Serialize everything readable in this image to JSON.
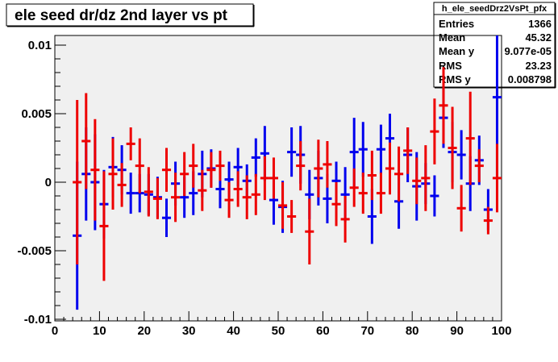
{
  "title": "ele seed dr/dz 2nd layer vs pt",
  "stats": {
    "name": "h_ele_seedDrz2VsPt_pfx",
    "rows": [
      {
        "label": "Entries",
        "value": "1366"
      },
      {
        "label": "Mean",
        "value": "45.32"
      },
      {
        "label": "Mean y",
        "value": "9.077e-05"
      },
      {
        "label": "RMS",
        "value": "23.23"
      },
      {
        "label": "RMS y",
        "value": "0.008798"
      }
    ]
  },
  "colors": {
    "series1": "#0000ee",
    "series2": "#ee0000",
    "frame_bg": "#f0f0f0",
    "axis": "#000000"
  },
  "chart_data": {
    "type": "scatter",
    "title": "ele seed dr/dz 2nd layer vs pt",
    "xlabel": "",
    "ylabel": "",
    "xlim": [
      0,
      100
    ],
    "ylim": [
      -0.0102,
      0.0108
    ],
    "x_ticks": [
      0,
      10,
      20,
      30,
      40,
      50,
      60,
      70,
      80,
      90,
      100
    ],
    "y_ticks": [
      -0.01,
      -0.005,
      0,
      0.005,
      0.01
    ],
    "y_tick_labels": [
      "-0.01",
      "-0.005",
      "0",
      "0.005",
      "0.01"
    ],
    "grid": false,
    "bin_width": 2,
    "series": [
      {
        "color": "#0000ee",
        "points": [
          {
            "x": 5,
            "y": -0.0039,
            "err": 0.0054
          },
          {
            "x": 7,
            "y": 0.0006,
            "err": 0.0034
          },
          {
            "x": 9,
            "y": 0.0,
            "err": 0.0035
          },
          {
            "x": 11,
            "y": -0.0016,
            "err": 0.0025
          },
          {
            "x": 13,
            "y": 0.0011,
            "err": 0.0022
          },
          {
            "x": 15,
            "y": 0.0009,
            "err": 0.0018
          },
          {
            "x": 17,
            "y": -0.0008,
            "err": 0.0015
          },
          {
            "x": 19,
            "y": -0.0008,
            "err": 0.0014
          },
          {
            "x": 21,
            "y": -0.0009,
            "err": 0.0015
          },
          {
            "x": 23,
            "y": -0.0011,
            "err": 0.0015
          },
          {
            "x": 25,
            "y": -0.0026,
            "err": 0.0014
          },
          {
            "x": 27,
            "y": -0.0001,
            "err": 0.0016
          },
          {
            "x": 29,
            "y": -0.0011,
            "err": 0.0015
          },
          {
            "x": 31,
            "y": -0.0008,
            "err": 0.0016
          },
          {
            "x": 33,
            "y": 0.0006,
            "err": 0.0017
          },
          {
            "x": 35,
            "y": 0.001,
            "err": 0.0014
          },
          {
            "x": 37,
            "y": -0.0005,
            "err": 0.0014
          },
          {
            "x": 39,
            "y": 0.0002,
            "err": 0.0013
          },
          {
            "x": 41,
            "y": 0.0011,
            "err": 0.0014
          },
          {
            "x": 43,
            "y": 0.0001,
            "err": 0.0012
          },
          {
            "x": 45,
            "y": 0.0018,
            "err": 0.0014
          },
          {
            "x": 47,
            "y": 0.0021,
            "err": 0.002
          },
          {
            "x": 49,
            "y": -0.0013,
            "err": 0.0018
          },
          {
            "x": 51,
            "y": -0.0018,
            "err": 0.0019
          },
          {
            "x": 53,
            "y": 0.0022,
            "err": 0.0018
          },
          {
            "x": 55,
            "y": 0.002,
            "err": 0.0021
          },
          {
            "x": 57,
            "y": -0.0009,
            "err": 0.0018
          },
          {
            "x": 59,
            "y": 0.0003,
            "err": 0.002
          },
          {
            "x": 61,
            "y": -0.0012,
            "err": 0.0018
          },
          {
            "x": 63,
            "y": 0.0001,
            "err": 0.0014
          },
          {
            "x": 65,
            "y": -0.0009,
            "err": 0.002
          },
          {
            "x": 67,
            "y": 0.0022,
            "err": 0.0025
          },
          {
            "x": 69,
            "y": 0.0024,
            "err": 0.002
          },
          {
            "x": 71,
            "y": -0.0025,
            "err": 0.002
          },
          {
            "x": 73,
            "y": 0.0024,
            "err": 0.0018
          },
          {
            "x": 75,
            "y": 0.0032,
            "err": 0.0018
          },
          {
            "x": 77,
            "y": -0.0014,
            "err": 0.002
          },
          {
            "x": 79,
            "y": 0.002,
            "err": 0.002
          },
          {
            "x": 81,
            "y": -0.0003,
            "err": 0.0025
          },
          {
            "x": 83,
            "y": -0.0001,
            "err": 0.0015
          },
          {
            "x": 85,
            "y": -0.001,
            "err": 0.0015
          },
          {
            "x": 87,
            "y": 0.0047,
            "err": 0.0022
          },
          {
            "x": 89,
            "y": 0.0022,
            "err": 0.0022
          },
          {
            "x": 91,
            "y": 0.002,
            "err": 0.0018
          },
          {
            "x": 93,
            "y": -0.0001,
            "err": 0.002
          },
          {
            "x": 95,
            "y": 0.0016,
            "err": 0.0018
          },
          {
            "x": 97,
            "y": -0.002,
            "err": 0.0015
          },
          {
            "x": 99,
            "y": 0.0062,
            "err": 0.006
          }
        ]
      },
      {
        "color": "#ee0000",
        "points": [
          {
            "x": 5,
            "y": 0.0,
            "err": 0.006
          },
          {
            "x": 7,
            "y": 0.003,
            "err": 0.0035
          },
          {
            "x": 9,
            "y": 0.0009,
            "err": 0.0037
          },
          {
            "x": 11,
            "y": -0.0032,
            "err": 0.004
          },
          {
            "x": 13,
            "y": 0.0006,
            "err": 0.0026
          },
          {
            "x": 15,
            "y": -0.0002,
            "err": 0.0016
          },
          {
            "x": 17,
            "y": 0.0028,
            "err": 0.0012
          },
          {
            "x": 19,
            "y": 0.0012,
            "err": 0.002
          },
          {
            "x": 21,
            "y": -0.0007,
            "err": 0.0018
          },
          {
            "x": 23,
            "y": -0.0012,
            "err": 0.0015
          },
          {
            "x": 25,
            "y": 0.0009,
            "err": 0.0016
          },
          {
            "x": 27,
            "y": -0.0011,
            "err": 0.0018
          },
          {
            "x": 29,
            "y": 0.0006,
            "err": 0.0016
          },
          {
            "x": 31,
            "y": 0.0012,
            "err": 0.0016
          },
          {
            "x": 33,
            "y": -0.0006,
            "err": 0.0015
          },
          {
            "x": 35,
            "y": 0.0009,
            "err": 0.0013
          },
          {
            "x": 37,
            "y": 0.0012,
            "err": 0.0011
          },
          {
            "x": 39,
            "y": -0.0013,
            "err": 0.0013
          },
          {
            "x": 41,
            "y": -0.0005,
            "err": 0.0013
          },
          {
            "x": 43,
            "y": -0.0011,
            "err": 0.0016
          },
          {
            "x": 45,
            "y": -0.0009,
            "err": 0.0015
          },
          {
            "x": 47,
            "y": 0.0003,
            "err": 0.0016
          },
          {
            "x": 49,
            "y": 0.0003,
            "err": 0.0015
          },
          {
            "x": 51,
            "y": -0.0017,
            "err": 0.0017
          },
          {
            "x": 53,
            "y": -0.0025,
            "err": 0.0012
          },
          {
            "x": 55,
            "y": 0.0012,
            "err": 0.0018
          },
          {
            "x": 57,
            "y": -0.0036,
            "err": 0.0024
          },
          {
            "x": 59,
            "y": 0.001,
            "err": 0.0021
          },
          {
            "x": 61,
            "y": 0.0013,
            "err": 0.0017
          },
          {
            "x": 63,
            "y": -0.0016,
            "err": 0.0016
          },
          {
            "x": 65,
            "y": -0.0027,
            "err": 0.0017
          },
          {
            "x": 67,
            "y": -0.0004,
            "err": 0.0014
          },
          {
            "x": 69,
            "y": -0.0008,
            "err": 0.0015
          },
          {
            "x": 71,
            "y": 0.0005,
            "err": 0.0018
          },
          {
            "x": 73,
            "y": -0.0008,
            "err": 0.0015
          },
          {
            "x": 75,
            "y": 0.001,
            "err": 0.0019
          },
          {
            "x": 77,
            "y": 0.0006,
            "err": 0.002
          },
          {
            "x": 79,
            "y": 0.0023,
            "err": 0.0017
          },
          {
            "x": 81,
            "y": 0.0001,
            "err": 0.0017
          },
          {
            "x": 83,
            "y": 0.0003,
            "err": 0.0024
          },
          {
            "x": 85,
            "y": 0.0037,
            "err": 0.0024
          },
          {
            "x": 87,
            "y": 0.0056,
            "err": 0.0028
          },
          {
            "x": 89,
            "y": 0.0025,
            "err": 0.003
          },
          {
            "x": 91,
            "y": -0.0019,
            "err": 0.0017
          },
          {
            "x": 93,
            "y": 0.0032,
            "err": 0.0034
          },
          {
            "x": 95,
            "y": 0.0012,
            "err": 0.0012
          },
          {
            "x": 97,
            "y": -0.0028,
            "err": 0.001
          },
          {
            "x": 99,
            "y": 0.0003,
            "err": 0.0025
          }
        ]
      }
    ]
  }
}
